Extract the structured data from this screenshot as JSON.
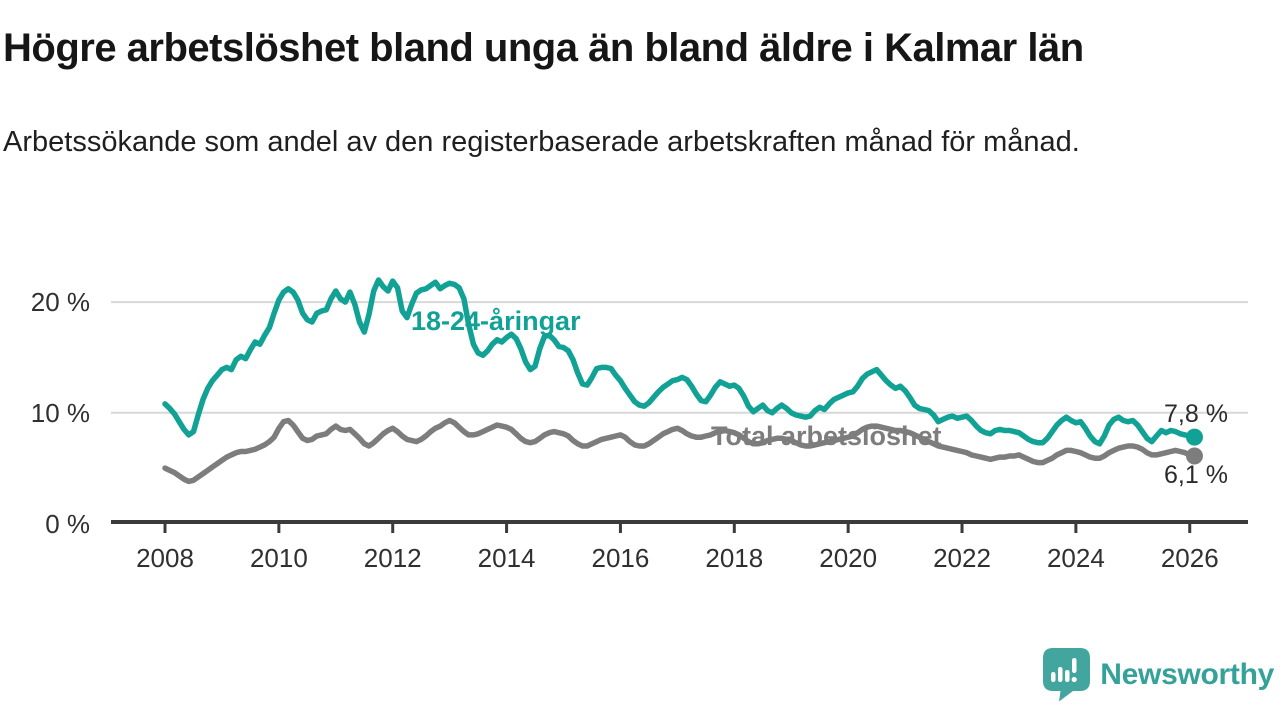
{
  "header": {
    "title": "Högre arbetslöshet bland unga än bland äldre i Kalmar län",
    "subtitle": "Arbetssökande som andel av den registerbaserade arbetskraften månad för månad."
  },
  "chart_data": {
    "type": "line",
    "title": "Högre arbetslöshet bland unga än bland äldre i Kalmar län",
    "subtitle": "Arbetssökande som andel av den registerbaserade arbetskraften månad för månad.",
    "unit": "%",
    "grid": "horizontal",
    "legend_position": "inline-labels",
    "x_axis": {
      "ticks": [
        2008,
        2010,
        2012,
        2014,
        2016,
        2018,
        2020,
        2022,
        2024,
        2026
      ],
      "range": [
        2008,
        2026.25
      ]
    },
    "y_axis": {
      "ticks": [
        0,
        10,
        20
      ],
      "labels": [
        "0 %",
        "10 %",
        "20 %"
      ],
      "range": [
        0,
        22.5
      ]
    },
    "series": [
      {
        "name": "18-24-åringar",
        "color": "#12A295",
        "start_year": 2008,
        "points_per_year": 12,
        "end_label": "7,8 %",
        "end_value": 7.8,
        "values": [
          10.8,
          10.4,
          9.9,
          9.2,
          8.5,
          8.0,
          8.3,
          9.8,
          11.2,
          12.2,
          12.9,
          13.4,
          13.9,
          14.1,
          13.9,
          14.8,
          15.1,
          14.9,
          15.7,
          16.4,
          16.2,
          17.0,
          17.7,
          19.0,
          20.2,
          20.9,
          21.2,
          20.9,
          20.2,
          19.0,
          18.4,
          18.2,
          19.0,
          19.2,
          19.3,
          20.3,
          21.0,
          20.3,
          20.0,
          20.9,
          19.8,
          18.2,
          17.3,
          18.9,
          21.0,
          22.0,
          21.4,
          21.0,
          21.9,
          21.3,
          19.2,
          18.6,
          19.8,
          20.8,
          21.1,
          21.2,
          21.5,
          21.8,
          21.2,
          21.5,
          21.7,
          21.6,
          21.3,
          20.3,
          18.0,
          16.2,
          15.4,
          15.2,
          15.6,
          16.2,
          16.6,
          16.4,
          16.8,
          17.1,
          16.7,
          15.8,
          14.6,
          13.9,
          14.2,
          15.8,
          16.9,
          17.0,
          16.6,
          16.0,
          15.9,
          15.6,
          14.8,
          13.6,
          12.6,
          12.5,
          13.2,
          14.0,
          14.1,
          14.1,
          14.0,
          13.4,
          12.9,
          12.2,
          11.6,
          11.0,
          10.7,
          10.6,
          10.9,
          11.4,
          11.9,
          12.3,
          12.6,
          12.9,
          13.0,
          13.2,
          13.0,
          12.4,
          11.7,
          11.1,
          11.0,
          11.6,
          12.3,
          12.8,
          12.6,
          12.4,
          12.5,
          12.2,
          11.5,
          10.6,
          10.1,
          10.4,
          10.7,
          10.2,
          10.0,
          10.4,
          10.7,
          10.4,
          10.0,
          9.8,
          9.7,
          9.6,
          9.7,
          10.2,
          10.5,
          10.3,
          10.8,
          11.2,
          11.4,
          11.6,
          11.8,
          11.9,
          12.4,
          13.1,
          13.5,
          13.7,
          13.9,
          13.4,
          12.9,
          12.5,
          12.2,
          12.4,
          12.0,
          11.4,
          10.7,
          10.4,
          10.3,
          10.2,
          9.8,
          9.2,
          9.4,
          9.6,
          9.7,
          9.5,
          9.6,
          9.7,
          9.3,
          8.8,
          8.4,
          8.2,
          8.1,
          8.4,
          8.5,
          8.4,
          8.4,
          8.3,
          8.2,
          7.9,
          7.6,
          7.4,
          7.3,
          7.3,
          7.7,
          8.3,
          8.9,
          9.3,
          9.6,
          9.3,
          9.1,
          9.2,
          8.6,
          7.9,
          7.4,
          7.2,
          7.9,
          8.9,
          9.4,
          9.6,
          9.3,
          9.2,
          9.3,
          8.9,
          8.3,
          7.7,
          7.4,
          7.9,
          8.4,
          8.2,
          8.4,
          8.3,
          8.1,
          8.0,
          7.9,
          7.8
        ]
      },
      {
        "name": "Total arbetslöshet",
        "color": "#7D7D7D",
        "start_year": 2008,
        "points_per_year": 12,
        "end_label": "6,1 %",
        "end_value": 6.1,
        "values": [
          5.0,
          4.8,
          4.6,
          4.3,
          4.0,
          3.8,
          3.9,
          4.2,
          4.5,
          4.8,
          5.1,
          5.4,
          5.7,
          6.0,
          6.2,
          6.4,
          6.5,
          6.5,
          6.6,
          6.7,
          6.9,
          7.1,
          7.4,
          7.8,
          8.6,
          9.2,
          9.3,
          8.9,
          8.3,
          7.7,
          7.5,
          7.6,
          7.9,
          8.0,
          8.1,
          8.5,
          8.8,
          8.5,
          8.4,
          8.5,
          8.1,
          7.7,
          7.2,
          7.0,
          7.3,
          7.7,
          8.1,
          8.4,
          8.6,
          8.3,
          7.9,
          7.6,
          7.5,
          7.4,
          7.6,
          7.9,
          8.3,
          8.6,
          8.8,
          9.1,
          9.3,
          9.1,
          8.7,
          8.3,
          8.0,
          8.0,
          8.1,
          8.3,
          8.5,
          8.7,
          8.9,
          8.8,
          8.7,
          8.5,
          8.1,
          7.7,
          7.4,
          7.3,
          7.4,
          7.7,
          8.0,
          8.2,
          8.3,
          8.2,
          8.1,
          7.9,
          7.5,
          7.2,
          7.0,
          7.0,
          7.2,
          7.4,
          7.6,
          7.7,
          7.8,
          7.9,
          8.0,
          7.8,
          7.4,
          7.1,
          7.0,
          7.0,
          7.2,
          7.5,
          7.8,
          8.1,
          8.3,
          8.5,
          8.6,
          8.4,
          8.1,
          7.9,
          7.8,
          7.8,
          7.9,
          8.0,
          8.2,
          8.3,
          8.4,
          8.3,
          8.2,
          8.0,
          7.7,
          7.4,
          7.2,
          7.2,
          7.3,
          7.5,
          7.6,
          7.7,
          7.7,
          7.6,
          7.5,
          7.3,
          7.1,
          7.0,
          7.0,
          7.1,
          7.2,
          7.3,
          7.4,
          7.5,
          7.6,
          7.7,
          7.8,
          7.9,
          8.2,
          8.5,
          8.7,
          8.8,
          8.8,
          8.7,
          8.6,
          8.5,
          8.4,
          8.4,
          8.3,
          8.2,
          8.0,
          7.8,
          7.6,
          7.4,
          7.2,
          7.0,
          6.9,
          6.8,
          6.7,
          6.6,
          6.5,
          6.4,
          6.2,
          6.1,
          6.0,
          5.9,
          5.8,
          5.9,
          6.0,
          6.0,
          6.1,
          6.1,
          6.2,
          6.0,
          5.8,
          5.6,
          5.5,
          5.5,
          5.7,
          5.9,
          6.2,
          6.4,
          6.6,
          6.6,
          6.5,
          6.4,
          6.2,
          6.0,
          5.9,
          5.9,
          6.1,
          6.4,
          6.6,
          6.8,
          6.9,
          7.0,
          7.0,
          6.9,
          6.7,
          6.4,
          6.2,
          6.2,
          6.3,
          6.4,
          6.5,
          6.6,
          6.5,
          6.4,
          6.2,
          6.1
        ]
      }
    ]
  },
  "branding": {
    "logo_text": "Newsworthy",
    "logo_text_color": "#35A29A",
    "logo_bubble_color": "#42A59E"
  },
  "colors": {
    "young_series": "#12A295",
    "total_series": "#7D7D7D",
    "gridline": "#D8D8D8",
    "axis": "#3B3B3B",
    "background": "#FFFFFF"
  }
}
